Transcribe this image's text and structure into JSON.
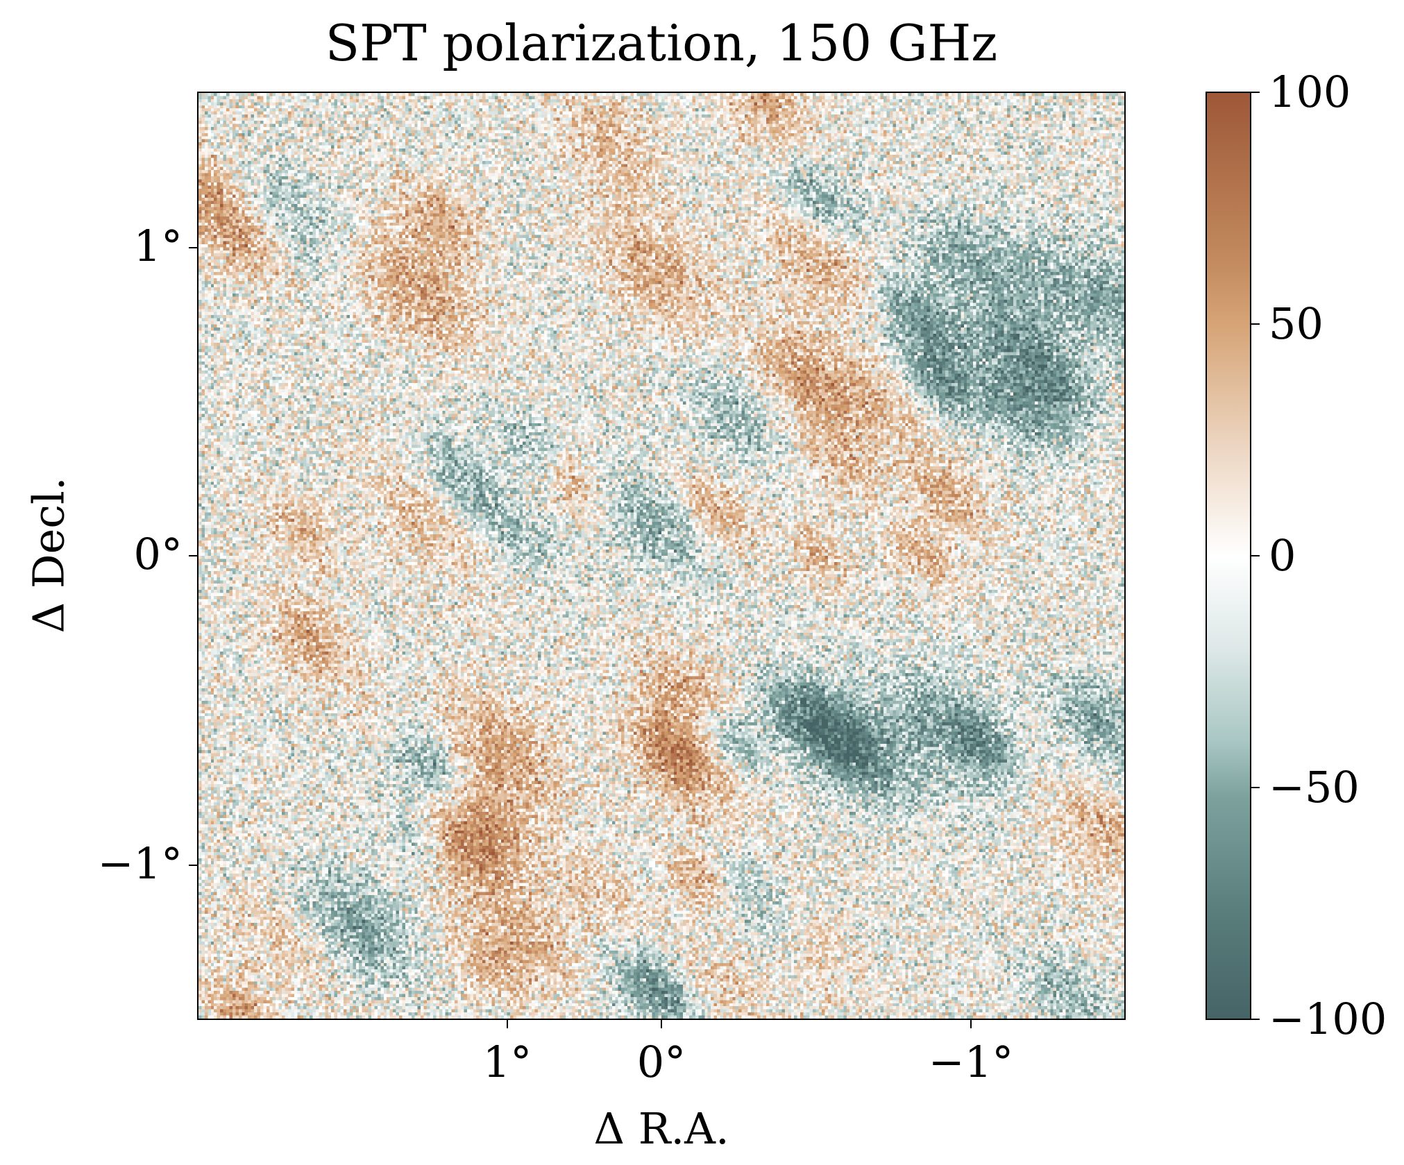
{
  "chart_data": {
    "type": "heatmap",
    "title": "SPT polarization, 150 GHz",
    "xlabel": "Δ R.A.",
    "ylabel": "Δ Decl.",
    "x_ticks": [
      "1°",
      "0°",
      "−1°"
    ],
    "x_tick_values": [
      1,
      0,
      -1
    ],
    "xlim": [
      1.5,
      -1.5
    ],
    "y_ticks": [
      "1°",
      "0°",
      "−1°"
    ],
    "y_tick_values": [
      1,
      0,
      -1
    ],
    "ylim": [
      -1.5,
      1.5
    ],
    "colorbar": {
      "ticks": [
        "100",
        "50",
        "0",
        "−50",
        "−100"
      ],
      "tick_values": [
        100,
        50,
        0,
        -50,
        -100
      ],
      "range": [
        -100,
        100
      ],
      "colors": {
        "max": "#9e5838",
        "mid_pos": "#d6a476",
        "zero": "#ffffff",
        "mid_neg": "#7da29e",
        "min": "#466466"
      }
    },
    "grid": false
  }
}
